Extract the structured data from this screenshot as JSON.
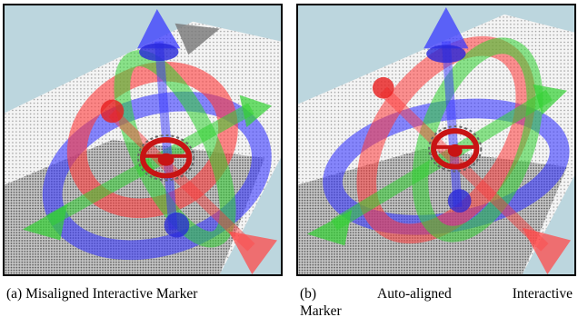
{
  "figure": {
    "subfigures": [
      {
        "label": "(a)",
        "caption": "Misaligned Interactive Marker",
        "view": "misaligned"
      },
      {
        "label": "(b)",
        "caption_words": [
          "Auto-aligned",
          "Interactive",
          "Marker"
        ],
        "view": "auto-aligned"
      }
    ]
  },
  "colors": {
    "background": "#bcd6de",
    "ring_red": "#ff3b3b",
    "ring_blue": "#3a3aff",
    "ring_green": "#32d232",
    "wheel": "#c81414",
    "pointcloud": "#f2f2f2"
  }
}
